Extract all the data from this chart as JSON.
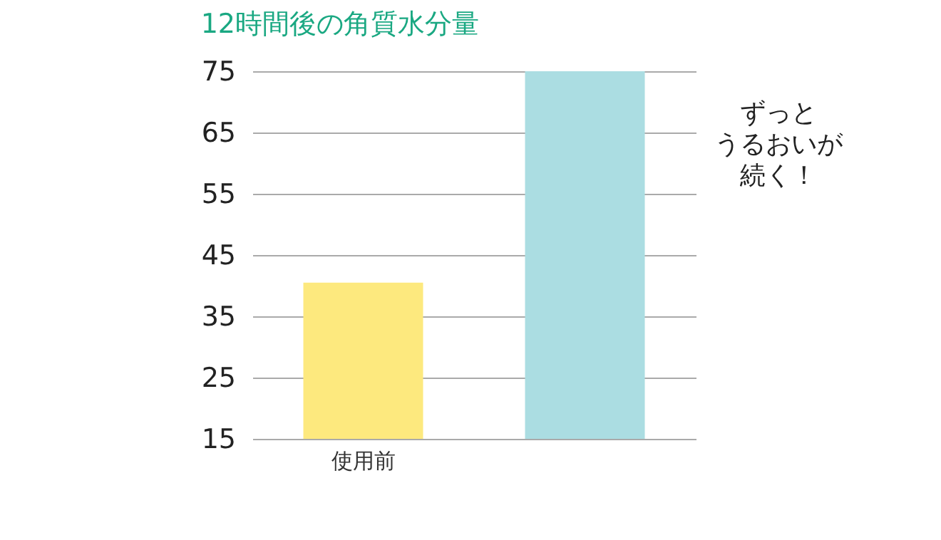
{
  "chart_data": {
    "type": "bar",
    "title": "12時間後の角質水分量",
    "categories": [
      "使用前",
      null
    ],
    "values": [
      40.5,
      75
    ],
    "colors": [
      "#fde97e",
      "#abdde2"
    ],
    "ylim": [
      15,
      75
    ],
    "yticks": [
      15,
      25,
      35,
      45,
      55,
      65,
      75
    ],
    "grid": "y",
    "annotations": [
      "ずっと",
      "うるおいが",
      "続く！"
    ]
  }
}
